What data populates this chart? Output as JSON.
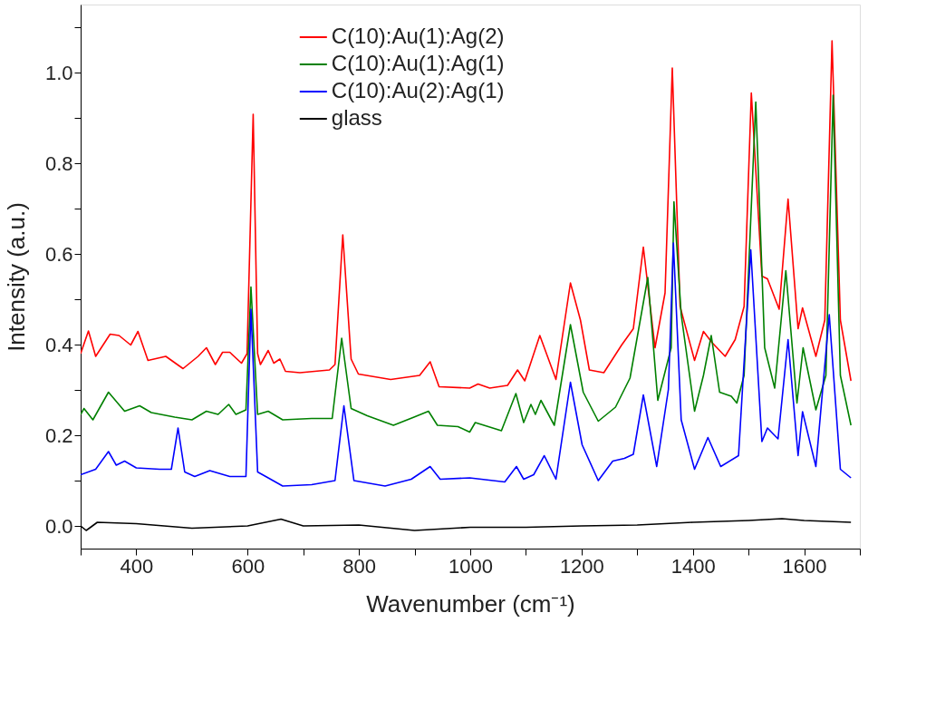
{
  "chart_data": {
    "type": "line",
    "xlabel": "Wavenumber (cm⁻¹)",
    "ylabel": "Intensity (a.u.)",
    "xlim": [
      300,
      1700
    ],
    "ylim": [
      -0.05,
      1.15
    ],
    "xticks": [
      {
        "value": 300,
        "label": null
      },
      400,
      {
        "value": 500,
        "label": null
      },
      600,
      {
        "value": 700,
        "label": null
      },
      800,
      {
        "value": 900,
        "label": null
      },
      1000,
      {
        "value": 1100,
        "label": null
      },
      1200,
      {
        "value": 1300,
        "label": null
      },
      1400,
      {
        "value": 1500,
        "label": null
      },
      1600,
      {
        "value": 1700,
        "label": null
      }
    ],
    "yticks": [
      {
        "value": 0,
        "label": "0.0"
      },
      {
        "value": 0.1,
        "label": null
      },
      0.2,
      {
        "value": 0.3,
        "label": null
      },
      0.4,
      {
        "value": 0.5,
        "label": null
      },
      0.6,
      {
        "value": 0.7,
        "label": null
      },
      0.8,
      {
        "value": 0.9,
        "label": null
      },
      {
        "value": 1,
        "label": "1.0"
      },
      {
        "value": 1.1,
        "label": null
      }
    ],
    "grid": false,
    "legend": "top",
    "marker": "none",
    "line_style": "solid",
    "series": [
      {
        "name": "C(10):Au(1):Ag(2)",
        "color": "#ff0000",
        "x": [
          300,
          314,
          327,
          353,
          369,
          390,
          403,
          421,
          453,
          484,
          511,
          526,
          542,
          555,
          568,
          589,
          599,
          610,
          618,
          623,
          637,
          647,
          658,
          668,
          694,
          747,
          757,
          771,
          786,
          799,
          857,
          909,
          928,
          944,
          999,
          1014,
          1035,
          1067,
          1085,
          1098,
          1125,
          1154,
          1180,
          1198,
          1214,
          1240,
          1272,
          1293,
          1311,
          1332,
          1350,
          1363,
          1377,
          1403,
          1419,
          1434,
          1458,
          1476,
          1492,
          1505,
          1524,
          1534,
          1555,
          1571,
          1589,
          1597,
          1621,
          1637,
          1650,
          1665,
          1684
        ],
        "values": [
          0.38,
          0.43,
          0.374,
          0.423,
          0.42,
          0.399,
          0.429,
          0.365,
          0.374,
          0.347,
          0.374,
          0.393,
          0.356,
          0.383,
          0.383,
          0.359,
          0.38,
          0.908,
          0.38,
          0.356,
          0.387,
          0.359,
          0.368,
          0.341,
          0.338,
          0.344,
          0.356,
          0.642,
          0.368,
          0.335,
          0.323,
          0.332,
          0.362,
          0.307,
          0.304,
          0.313,
          0.304,
          0.31,
          0.344,
          0.32,
          0.42,
          0.323,
          0.536,
          0.454,
          0.344,
          0.338,
          0.399,
          0.435,
          0.615,
          0.393,
          0.514,
          1.01,
          0.484,
          0.365,
          0.429,
          0.405,
          0.374,
          0.411,
          0.484,
          0.955,
          0.551,
          0.545,
          0.478,
          0.721,
          0.435,
          0.481,
          0.374,
          0.454,
          1.07,
          0.454,
          0.32
        ]
      },
      {
        "name": "C(10):Au(1):Ag(1)",
        "color": "#008000",
        "x": [
          300,
          306,
          322,
          350,
          379,
          406,
          427,
          469,
          500,
          526,
          547,
          566,
          579,
          597,
          606,
          618,
          637,
          663,
          715,
          752,
          769,
          786,
          815,
          862,
          899,
          925,
          941,
          978,
          999,
          1009,
          1056,
          1082,
          1096,
          1109,
          1117,
          1127,
          1151,
          1180,
          1203,
          1230,
          1261,
          1287,
          1319,
          1337,
          1361,
          1366,
          1379,
          1403,
          1419,
          1433,
          1448,
          1469,
          1479,
          1492,
          1513,
          1529,
          1547,
          1567,
          1587,
          1598,
          1621,
          1639,
          1652,
          1665,
          1684
        ],
        "values": [
          0.246,
          0.259,
          0.234,
          0.295,
          0.253,
          0.265,
          0.25,
          0.24,
          0.234,
          0.253,
          0.246,
          0.268,
          0.246,
          0.256,
          0.527,
          0.246,
          0.253,
          0.234,
          0.237,
          0.237,
          0.414,
          0.259,
          0.243,
          0.222,
          0.24,
          0.253,
          0.222,
          0.219,
          0.207,
          0.228,
          0.21,
          0.292,
          0.228,
          0.268,
          0.246,
          0.277,
          0.222,
          0.444,
          0.295,
          0.231,
          0.262,
          0.326,
          0.548,
          0.277,
          0.393,
          0.715,
          0.466,
          0.253,
          0.332,
          0.42,
          0.295,
          0.286,
          0.271,
          0.332,
          0.935,
          0.393,
          0.304,
          0.563,
          0.271,
          0.393,
          0.256,
          0.332,
          0.95,
          0.332,
          0.222
        ]
      },
      {
        "name": "C(10):Au(2):Ag(1)",
        "color": "#0000ff",
        "x": [
          300,
          327,
          350,
          364,
          379,
          400,
          442,
          463,
          475,
          487,
          505,
          532,
          568,
          597,
          606,
          618,
          637,
          663,
          715,
          757,
          773,
          791,
          847,
          894,
          928,
          946,
          999,
          1062,
          1083,
          1096,
          1114,
          1133,
          1154,
          1180,
          1201,
          1230,
          1256,
          1277,
          1293,
          1311,
          1335,
          1356,
          1365,
          1379,
          1403,
          1427,
          1450,
          1482,
          1504,
          1524,
          1534,
          1553,
          1571,
          1589,
          1597,
          1621,
          1645,
          1665,
          1684
        ],
        "values": [
          0.113,
          0.125,
          0.164,
          0.134,
          0.143,
          0.128,
          0.125,
          0.125,
          0.216,
          0.119,
          0.109,
          0.122,
          0.109,
          0.109,
          0.478,
          0.119,
          0.106,
          0.088,
          0.091,
          0.1,
          0.265,
          0.1,
          0.088,
          0.103,
          0.131,
          0.103,
          0.106,
          0.097,
          0.131,
          0.103,
          0.113,
          0.155,
          0.103,
          0.317,
          0.179,
          0.1,
          0.143,
          0.149,
          0.158,
          0.289,
          0.131,
          0.301,
          0.624,
          0.234,
          0.125,
          0.195,
          0.131,
          0.155,
          0.609,
          0.186,
          0.216,
          0.192,
          0.411,
          0.155,
          0.252,
          0.131,
          0.466,
          0.125,
          0.106
        ]
      },
      {
        "name": "glass",
        "color": "#000000",
        "x": [
          300,
          310,
          330,
          400,
          500,
          600,
          660,
          700,
          800,
          900,
          1000,
          1100,
          1200,
          1300,
          1400,
          1500,
          1560,
          1600,
          1684
        ],
        "values": [
          0.0,
          -0.01,
          0.008,
          0.005,
          -0.005,
          0.0,
          0.015,
          0.0,
          0.002,
          -0.01,
          -0.003,
          -0.003,
          0.0,
          0.002,
          0.008,
          0.012,
          0.016,
          0.012,
          0.008
        ]
      }
    ]
  }
}
